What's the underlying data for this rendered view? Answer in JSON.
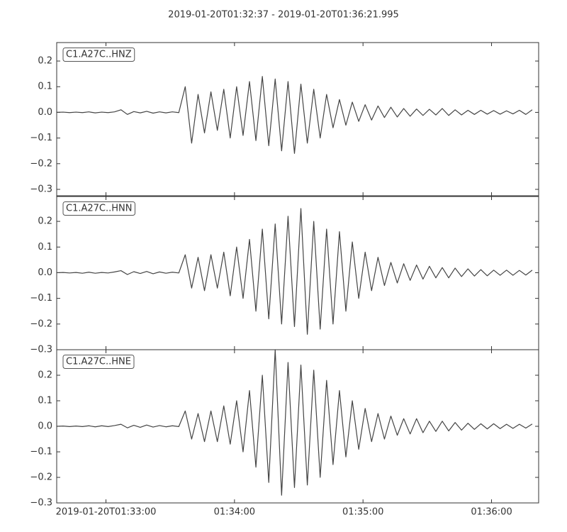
{
  "chart_data": {
    "type": "line",
    "title": "2019-01-20T01:32:37  -  2019-01-20T01:36:21.995",
    "xlim": [
      "2019-01-20T01:32:37",
      "2019-01-20T01:36:21.995"
    ],
    "xticks": [
      "2019-01-20T01:33:00",
      {
        "value": "2019-01-20T01:34:00",
        "label": "01:34:00"
      },
      {
        "value": "2019-01-20T01:35:00",
        "label": "01:35:00"
      },
      {
        "value": "2019-01-20T01:36:00",
        "label": "01:36:00"
      }
    ],
    "yticks": [
      {
        "value": -0.3,
        "label": "−0.3"
      },
      {
        "value": -0.2,
        "label": "−0.2"
      },
      {
        "value": -0.1,
        "label": "−0.1"
      },
      {
        "value": 0,
        "label": "0.0"
      },
      0.1,
      0.2
    ],
    "x": [
      "2019-01-20T01:32:37",
      "2019-01-20T01:32:40",
      "2019-01-20T01:32:43",
      "2019-01-20T01:32:46",
      "2019-01-20T01:32:49",
      "2019-01-20T01:32:52",
      "2019-01-20T01:32:55",
      "2019-01-20T01:32:58",
      "2019-01-20T01:33:01",
      "2019-01-20T01:33:04",
      "2019-01-20T01:33:07",
      "2019-01-20T01:33:10",
      "2019-01-20T01:33:13",
      "2019-01-20T01:33:16",
      "2019-01-20T01:33:19",
      "2019-01-20T01:33:22",
      "2019-01-20T01:33:25",
      "2019-01-20T01:33:28",
      "2019-01-20T01:33:31",
      "2019-01-20T01:33:34",
      "2019-01-20T01:33:37",
      "2019-01-20T01:33:40",
      "2019-01-20T01:33:43",
      "2019-01-20T01:33:46",
      "2019-01-20T01:33:49",
      "2019-01-20T01:33:52",
      "2019-01-20T01:33:55",
      "2019-01-20T01:33:58",
      "2019-01-20T01:34:01",
      "2019-01-20T01:34:04",
      "2019-01-20T01:34:07",
      "2019-01-20T01:34:10",
      "2019-01-20T01:34:13",
      "2019-01-20T01:34:16",
      "2019-01-20T01:34:19",
      "2019-01-20T01:34:22",
      "2019-01-20T01:34:25",
      "2019-01-20T01:34:28",
      "2019-01-20T01:34:31",
      "2019-01-20T01:34:34",
      "2019-01-20T01:34:37",
      "2019-01-20T01:34:40",
      "2019-01-20T01:34:43",
      "2019-01-20T01:34:46",
      "2019-01-20T01:34:49",
      "2019-01-20T01:34:52",
      "2019-01-20T01:34:55",
      "2019-01-20T01:34:58",
      "2019-01-20T01:35:01",
      "2019-01-20T01:35:04",
      "2019-01-20T01:35:07",
      "2019-01-20T01:35:10",
      "2019-01-20T01:35:13",
      "2019-01-20T01:35:16",
      "2019-01-20T01:35:19",
      "2019-01-20T01:35:22",
      "2019-01-20T01:35:25",
      "2019-01-20T01:35:28",
      "2019-01-20T01:35:31",
      "2019-01-20T01:35:34",
      "2019-01-20T01:35:37",
      "2019-01-20T01:35:40",
      "2019-01-20T01:35:43",
      "2019-01-20T01:35:46",
      "2019-01-20T01:35:49",
      "2019-01-20T01:35:52",
      "2019-01-20T01:35:55",
      "2019-01-20T01:35:58",
      "2019-01-20T01:36:01",
      "2019-01-20T01:36:04",
      "2019-01-20T01:36:07",
      "2019-01-20T01:36:10",
      "2019-01-20T01:36:13",
      "2019-01-20T01:36:16",
      "2019-01-20T01:36:19"
    ],
    "series": [
      {
        "name": "C1.A27C..HNZ",
        "color": "#444444",
        "ylim": [
          -0.325,
          0.272
        ],
        "values": [
          0,
          0.001,
          -0.001,
          0.001,
          -0.001,
          0.002,
          -0.002,
          0.001,
          -0.001,
          0.002,
          0.01,
          -0.008,
          0.003,
          -0.002,
          0.004,
          -0.003,
          0.002,
          -0.002,
          0.002,
          -0.001,
          0.1,
          -0.12,
          0.07,
          -0.08,
          0.08,
          -0.07,
          0.09,
          -0.1,
          0.1,
          -0.09,
          0.12,
          -0.11,
          0.14,
          -0.13,
          0.13,
          -0.15,
          0.12,
          -0.16,
          0.11,
          -0.12,
          0.09,
          -0.1,
          0.07,
          -0.06,
          0.05,
          -0.05,
          0.04,
          -0.035,
          0.03,
          -0.03,
          0.025,
          -0.02,
          0.02,
          -0.018,
          0.015,
          -0.015,
          0.013,
          -0.012,
          0.012,
          -0.01,
          0.015,
          -0.012,
          0.01,
          -0.01,
          0.008,
          -0.008,
          0.008,
          -0.007,
          0.007,
          -0.007,
          0.006,
          -0.006,
          0.008,
          -0.008,
          0.01
        ]
      },
      {
        "name": "C1.A27C..HNN",
        "color": "#444444",
        "ylim": [
          -0.3,
          0.297
        ],
        "values": [
          0,
          0.001,
          -0.001,
          0.001,
          -0.002,
          0.002,
          -0.002,
          0.001,
          -0.001,
          0.003,
          0.008,
          -0.007,
          0.004,
          -0.003,
          0.005,
          -0.004,
          0.003,
          -0.002,
          0.002,
          -0.001,
          0.07,
          -0.06,
          0.06,
          -0.07,
          0.07,
          -0.06,
          0.08,
          -0.09,
          0.1,
          -0.1,
          0.13,
          -0.15,
          0.17,
          -0.18,
          0.19,
          -0.2,
          0.22,
          -0.21,
          0.25,
          -0.24,
          0.2,
          -0.22,
          0.17,
          -0.2,
          0.16,
          -0.15,
          0.12,
          -0.1,
          0.08,
          -0.07,
          0.06,
          -0.05,
          0.04,
          -0.04,
          0.035,
          -0.03,
          0.03,
          -0.025,
          0.025,
          -0.02,
          0.02,
          -0.02,
          0.018,
          -0.015,
          0.015,
          -0.013,
          0.012,
          -0.012,
          0.01,
          -0.01,
          0.01,
          -0.01,
          0.009,
          -0.009,
          0.01
        ]
      },
      {
        "name": "C1.A27C..HNE",
        "color": "#444444",
        "ylim": [
          -0.3,
          0.3
        ],
        "values": [
          0,
          0.001,
          -0.001,
          0.001,
          -0.001,
          0.002,
          -0.002,
          0.002,
          -0.001,
          0.003,
          0.008,
          -0.006,
          0.004,
          -0.004,
          0.005,
          -0.003,
          0.003,
          -0.002,
          0.002,
          -0.001,
          0.06,
          -0.05,
          0.05,
          -0.06,
          0.06,
          -0.06,
          0.08,
          -0.07,
          0.1,
          -0.1,
          0.14,
          -0.16,
          0.2,
          -0.22,
          0.3,
          -0.27,
          0.25,
          -0.24,
          0.24,
          -0.23,
          0.22,
          -0.2,
          0.18,
          -0.15,
          0.14,
          -0.12,
          0.1,
          -0.09,
          0.07,
          -0.06,
          0.05,
          -0.05,
          0.04,
          -0.035,
          0.03,
          -0.03,
          0.03,
          -0.025,
          0.02,
          -0.02,
          0.02,
          -0.018,
          0.015,
          -0.015,
          0.012,
          -0.012,
          0.01,
          -0.01,
          0.01,
          -0.009,
          0.008,
          -0.008,
          0.008,
          -0.007,
          0.009
        ]
      }
    ]
  }
}
